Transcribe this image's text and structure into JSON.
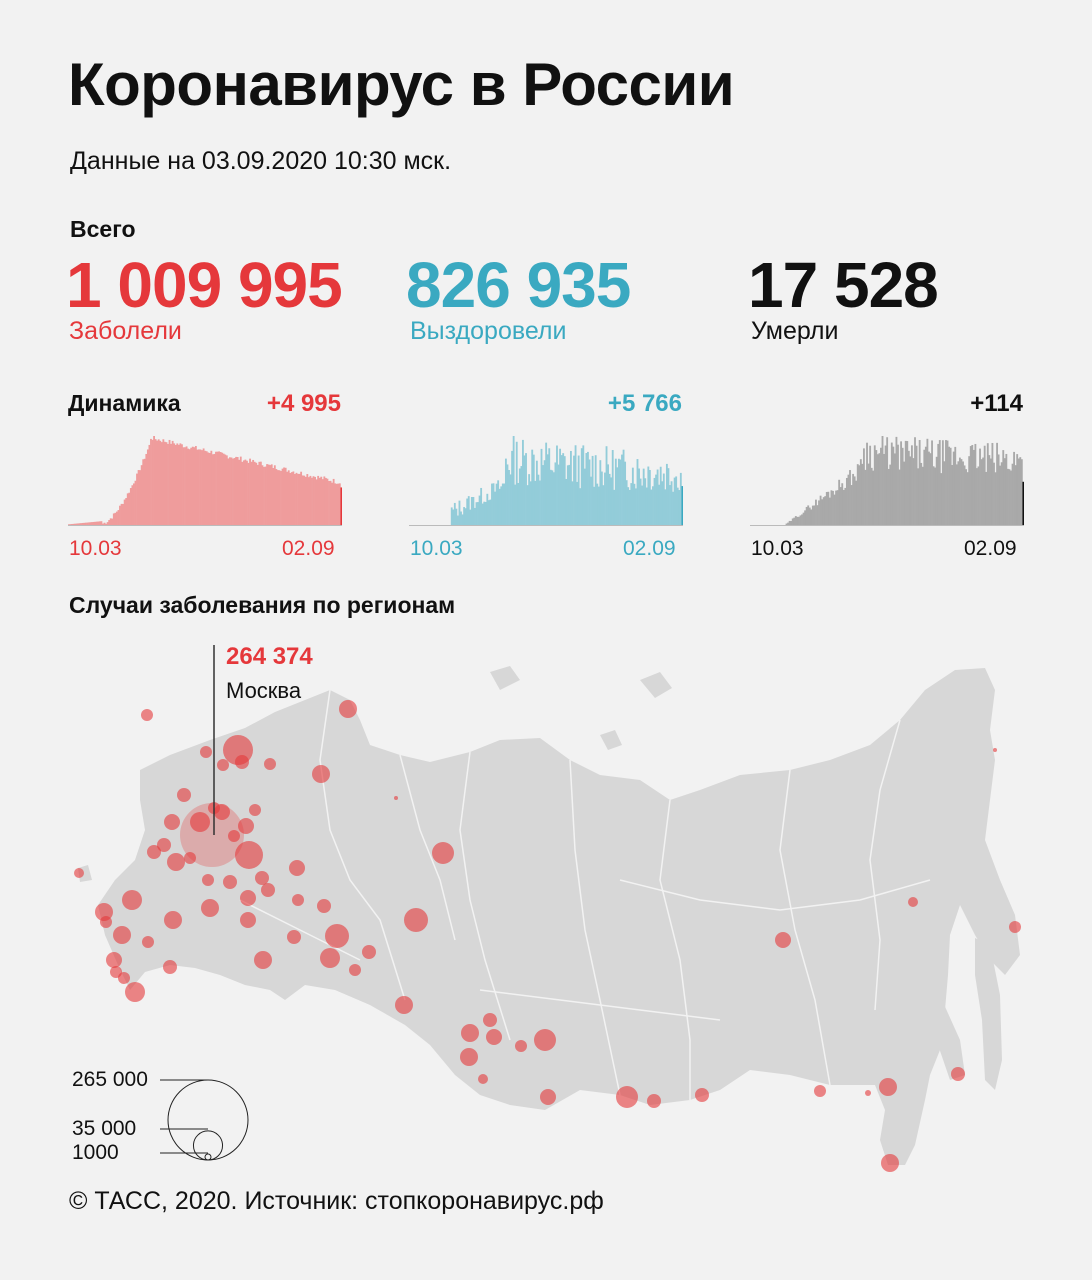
{
  "title": "Коронавирус в России",
  "subtitle": "Данные на 03.09.2020 10:30 мск.",
  "totals": {
    "heading": "Всего",
    "cases": {
      "value": "1 009 995",
      "label": "Заболели",
      "color": "#e5383b"
    },
    "recovered": {
      "value": "826 935",
      "label": "Выздоровели",
      "color": "#3aa9c1"
    },
    "deaths": {
      "value": "17 528",
      "label": "Умерли",
      "color": "#111111"
    }
  },
  "dynamics": {
    "heading": "Динамика",
    "cases_delta": "+4 995",
    "recovered_delta": "+5 766",
    "deaths_delta": "+114"
  },
  "chart_data": [
    {
      "type": "bar",
      "x_start": "10.03",
      "x_end": "02.09",
      "color": "#ef9c9c",
      "last_value": 4995,
      "peak_value": 11656
    },
    {
      "type": "bar",
      "x_start": "10.03",
      "x_end": "02.09",
      "color": "#93ccd9",
      "last_value": 5766,
      "peak_value": 13000
    },
    {
      "type": "bar",
      "x_start": "10.03",
      "x_end": "02.09",
      "color": "#a9a9a9",
      "last_value": 114,
      "peak_value": 232
    },
    {
      "type": "scatter",
      "title": "Случаи заболевания по регионам",
      "highlight": {
        "name": "Москва",
        "value": "264 374"
      },
      "legend": {
        "values": [
          265000,
          35000,
          1000
        ],
        "labels": [
          "265 000",
          "35 000",
          "1000"
        ]
      },
      "bubble_color": "#e5383b"
    }
  ],
  "footer": "© ТАСС, 2020. Источник: стопкоронавирус.рф"
}
